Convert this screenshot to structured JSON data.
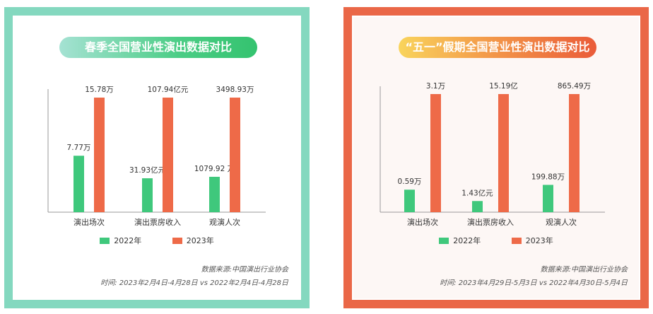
{
  "colors": {
    "series_2022": "#3fc87c",
    "series_2023": "#ee6a48"
  },
  "legend": {
    "label_2022": "2022年",
    "label_2023": "2023年"
  },
  "chart_data": [
    {
      "type": "bar",
      "title": "春季全国营业性演出数据对比",
      "categories": [
        "演出场次",
        "演出票房收入",
        "观演人次"
      ],
      "series": [
        {
          "name": "2022年",
          "values": [
            7.77,
            31.93,
            1079.92
          ],
          "labels": [
            "7.77万",
            "31.93亿元",
            "1079.92 万"
          ]
        },
        {
          "name": "2023年",
          "values": [
            15.78,
            107.94,
            3498.93
          ],
          "labels": [
            "15.78万",
            "107.94亿元",
            "3498.93万"
          ]
        }
      ],
      "source": "数据来源:中国演出行业协会",
      "period": "时间: 2023年2月4日-4月28日 vs 2022年2月4日-4月28日"
    },
    {
      "type": "bar",
      "title": "“五一”假期全国营业性演出数据对比",
      "categories": [
        "演出场次",
        "演出票房收入",
        "观演人次"
      ],
      "series": [
        {
          "name": "2022年",
          "values": [
            0.59,
            1.43,
            199.88
          ],
          "labels": [
            "0.59万",
            "1.43亿元",
            "199.88万"
          ]
        },
        {
          "name": "2023年",
          "values": [
            3.1,
            15.19,
            865.49
          ],
          "labels": [
            "3.1万",
            "15.19亿",
            "865.49万"
          ]
        }
      ],
      "source": "数据来源:中国演出行业协会",
      "period": "时间: 2023年4月29日-5月3日 vs 2022年4月30日-5月4日"
    }
  ]
}
